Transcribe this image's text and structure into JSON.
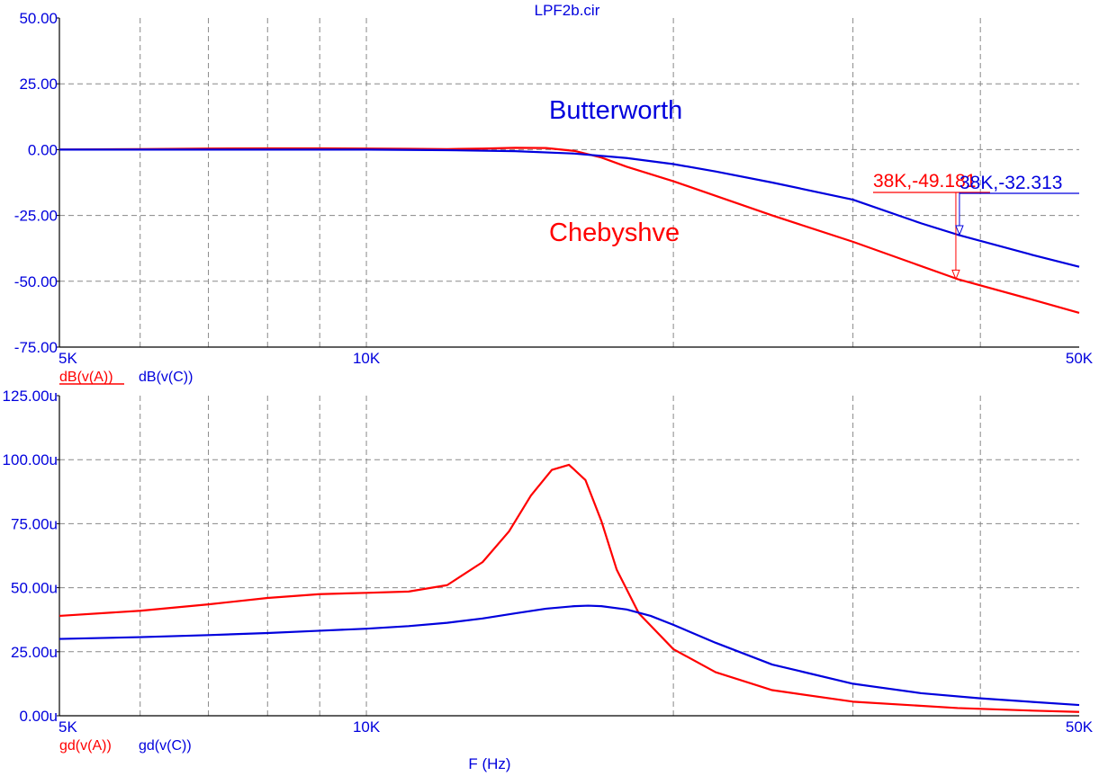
{
  "window_title": "LPF2b.cir",
  "x_axis_title": "F (Hz)",
  "colors": {
    "red": "#ff0000",
    "blue": "#0000dd",
    "axis": "#000000",
    "grid": "#888888"
  },
  "chart_data": [
    {
      "type": "line",
      "x_scale": "log",
      "xlim": [
        5000,
        50000
      ],
      "ylim": [
        -75,
        50
      ],
      "grid": true,
      "x_ticks": [
        {
          "value": 5000,
          "label": "5K"
        },
        {
          "value": 10000,
          "label": "10K"
        },
        {
          "value": 50000,
          "label": "50K"
        }
      ],
      "y_ticks": [
        {
          "value": 50,
          "label": "50.00"
        },
        {
          "value": 25,
          "label": "25.00"
        },
        {
          "value": 0,
          "label": "0.00"
        },
        {
          "value": -25,
          "label": "-25.00"
        },
        {
          "value": -50,
          "label": "-50.00"
        },
        {
          "value": -75,
          "label": "-75.00"
        }
      ],
      "legend": [
        {
          "label": "dB(v(A))",
          "color": "#ff0000",
          "underlined": true
        },
        {
          "label": "dB(v(C))",
          "color": "#0000dd",
          "underlined": false
        }
      ],
      "series": [
        {
          "name": "dB(v(A))",
          "color": "#ff0000",
          "x": [
            5000,
            6000,
            7000,
            8000,
            9000,
            10000,
            11000,
            12000,
            13000,
            14000,
            15000,
            16000,
            17000,
            18000,
            20000,
            25000,
            30000,
            38000,
            45000,
            50000
          ],
          "y": [
            0,
            0.2,
            0.4,
            0.5,
            0.5,
            0.4,
            0.3,
            0.2,
            0.4,
            0.7,
            0.6,
            -0.5,
            -3,
            -6.5,
            -12,
            -25,
            -35,
            -49.181,
            -57,
            -62
          ]
        },
        {
          "name": "dB(v(C))",
          "color": "#0000dd",
          "x": [
            5000,
            8000,
            10000,
            12000,
            14000,
            16000,
            18000,
            20000,
            22000,
            25000,
            30000,
            35000,
            38000,
            45000,
            50000
          ],
          "y": [
            0,
            0,
            0,
            -0.2,
            -0.6,
            -1.5,
            -3.2,
            -5.5,
            -8.3,
            -12.5,
            -19,
            -28,
            -32.313,
            -40,
            -44.5
          ]
        }
      ],
      "annotations": [
        {
          "text": "Butterworth",
          "color": "#0000dd"
        },
        {
          "text": "Chebyshve",
          "color": "#ff0000"
        }
      ],
      "markers": [
        {
          "text": "38K,-49.181",
          "color": "#ff0000",
          "x": 38000,
          "y": -49.181
        },
        {
          "text": "38K,-32.313",
          "color": "#0000dd",
          "x": 38000,
          "y": -32.313
        }
      ]
    },
    {
      "type": "line",
      "x_scale": "log",
      "xlim": [
        5000,
        50000
      ],
      "ylim": [
        0,
        125
      ],
      "grid": true,
      "x_ticks": [
        {
          "value": 5000,
          "label": "5K"
        },
        {
          "value": 10000,
          "label": "10K"
        },
        {
          "value": 50000,
          "label": "50K"
        }
      ],
      "y_ticks": [
        {
          "value": 125,
          "label": "125.00u"
        },
        {
          "value": 100,
          "label": "100.00u"
        },
        {
          "value": 75,
          "label": "75.00u"
        },
        {
          "value": 50,
          "label": "50.00u"
        },
        {
          "value": 25,
          "label": "25.00u"
        },
        {
          "value": 0,
          "label": "0.00u"
        }
      ],
      "legend": [
        {
          "label": "gd(v(A))",
          "color": "#ff0000",
          "underlined": false
        },
        {
          "label": "gd(v(C))",
          "color": "#0000dd",
          "underlined": false
        }
      ],
      "series": [
        {
          "name": "gd(v(A))",
          "color": "#ff0000",
          "x": [
            5000,
            6000,
            7000,
            8000,
            9000,
            10000,
            11000,
            12000,
            13000,
            13800,
            14500,
            15200,
            15800,
            16400,
            17000,
            17600,
            18500,
            20000,
            22000,
            25000,
            30000,
            38000,
            45000,
            50000
          ],
          "y": [
            39,
            41,
            43.5,
            46,
            47.5,
            48,
            48.5,
            51,
            60,
            72,
            86,
            96,
            98,
            92,
            76,
            57,
            40,
            26,
            17,
            10,
            5.5,
            3,
            2,
            1.5
          ]
        },
        {
          "name": "gd(v(C))",
          "color": "#0000dd",
          "x": [
            5000,
            6000,
            7000,
            8000,
            9000,
            10000,
            11000,
            12000,
            13000,
            14000,
            15000,
            16000,
            16500,
            17000,
            18000,
            19000,
            20000,
            22000,
            25000,
            30000,
            35000,
            40000,
            45000,
            50000
          ],
          "y": [
            30,
            30.7,
            31.5,
            32.3,
            33.2,
            34,
            35,
            36.3,
            38,
            40,
            41.8,
            42.8,
            43,
            42.8,
            41.5,
            39,
            35.5,
            28.5,
            20,
            12.5,
            8.8,
            6.8,
            5.4,
            4.2
          ]
        }
      ]
    }
  ]
}
